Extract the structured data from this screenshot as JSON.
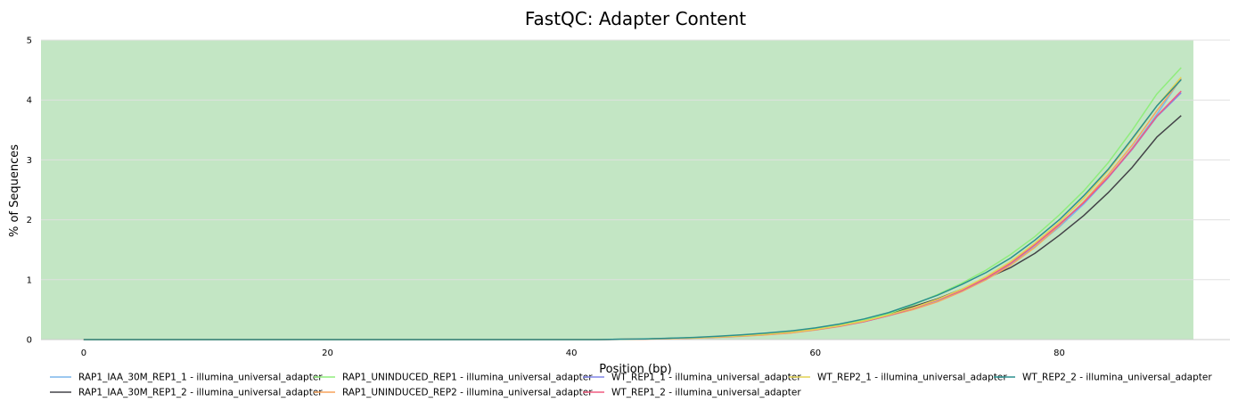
{
  "chart_data": {
    "type": "line",
    "title": "FastQC: Adapter Content",
    "xlabel": "Position (bp)",
    "ylabel": "% of Sequences",
    "xlim": [
      -3.5,
      94
    ],
    "ylim": [
      0,
      5
    ],
    "xticks": [
      0,
      20,
      40,
      60,
      80
    ],
    "yticks": [
      0,
      1,
      2,
      3,
      4,
      5
    ],
    "background_band": {
      "from": 0,
      "to": 5,
      "color": "#c3e6c4"
    },
    "band_x_end": 91,
    "grid": "horizontal",
    "legend_position": "bottom",
    "x": [
      0,
      2,
      4,
      6,
      8,
      10,
      12,
      14,
      16,
      18,
      20,
      22,
      24,
      26,
      28,
      30,
      32,
      34,
      36,
      38,
      40,
      42,
      44,
      46,
      48,
      50,
      52,
      54,
      56,
      58,
      60,
      62,
      64,
      66,
      68,
      70,
      72,
      74,
      76,
      78,
      80,
      82,
      84,
      86,
      88,
      90
    ],
    "series": [
      {
        "name": "RAP1_IAA_30M_REP1_1 - illumina_universal_adapter",
        "color": "#7cb5ec",
        "values": [
          0,
          0,
          0,
          0,
          0,
          0,
          0,
          0,
          0,
          0,
          0,
          0,
          0,
          0,
          0,
          0,
          0,
          0,
          0,
          0,
          0,
          0,
          0.005,
          0.01,
          0.018,
          0.028,
          0.045,
          0.065,
          0.09,
          0.12,
          0.17,
          0.23,
          0.31,
          0.41,
          0.52,
          0.65,
          0.82,
          1.02,
          1.26,
          1.55,
          1.88,
          2.26,
          2.7,
          3.2,
          3.76,
          4.36
        ]
      },
      {
        "name": "RAP1_IAA_30M_REP1_2 - illumina_universal_adapter",
        "color": "#434348",
        "values": [
          0,
          0,
          0,
          0,
          0,
          0,
          0,
          0,
          0,
          0,
          0,
          0,
          0,
          0,
          0,
          0,
          0,
          0,
          0,
          0,
          0,
          0,
          0.005,
          0.01,
          0.02,
          0.03,
          0.05,
          0.07,
          0.1,
          0.13,
          0.18,
          0.25,
          0.33,
          0.43,
          0.55,
          0.68,
          0.84,
          1.02,
          1.2,
          1.44,
          1.74,
          2.07,
          2.45,
          2.88,
          3.38,
          3.74
        ]
      },
      {
        "name": "RAP1_UNINDUCED_REP1 - illumina_universal_adapter",
        "color": "#90ed7d",
        "values": [
          0,
          0,
          0,
          0,
          0,
          0,
          0,
          0,
          0,
          0,
          0,
          0,
          0,
          0,
          0,
          0,
          0,
          0,
          0,
          0,
          0,
          0,
          0.005,
          0.01,
          0.02,
          0.032,
          0.05,
          0.072,
          0.1,
          0.135,
          0.185,
          0.25,
          0.33,
          0.43,
          0.58,
          0.75,
          0.94,
          1.16,
          1.42,
          1.72,
          2.08,
          2.48,
          2.95,
          3.5,
          4.1,
          4.54
        ]
      },
      {
        "name": "RAP1_UNINDUCED_REP2 - illumina_universal_adapter",
        "color": "#f7a35c",
        "values": [
          0,
          0,
          0,
          0,
          0,
          0,
          0,
          0,
          0,
          0,
          0,
          0,
          0,
          0,
          0,
          0,
          0,
          0,
          0,
          0,
          0,
          0,
          0.003,
          0.008,
          0.015,
          0.024,
          0.038,
          0.056,
          0.08,
          0.11,
          0.16,
          0.22,
          0.3,
          0.4,
          0.5,
          0.63,
          0.8,
          1.0,
          1.24,
          1.54,
          1.9,
          2.3,
          2.75,
          3.25,
          3.82,
          4.35
        ]
      },
      {
        "name": "WT_REP1_1 - illumina_universal_adapter",
        "color": "#8085e9",
        "values": [
          0,
          0,
          0,
          0,
          0,
          0,
          0,
          0,
          0,
          0,
          0,
          0,
          0,
          0,
          0,
          0,
          0,
          0,
          0,
          0,
          0,
          0,
          0.004,
          0.009,
          0.017,
          0.027,
          0.043,
          0.062,
          0.088,
          0.12,
          0.165,
          0.225,
          0.3,
          0.4,
          0.52,
          0.66,
          0.82,
          1.02,
          1.27,
          1.58,
          1.92,
          2.28,
          2.7,
          3.18,
          3.72,
          4.12
        ]
      },
      {
        "name": "WT_REP1_2 - illumina_universal_adapter",
        "color": "#f15c80",
        "values": [
          0,
          0,
          0,
          0,
          0,
          0,
          0,
          0,
          0,
          0,
          0,
          0,
          0,
          0,
          0,
          0,
          0,
          0,
          0,
          0,
          0,
          0,
          0.004,
          0.009,
          0.017,
          0.027,
          0.043,
          0.062,
          0.088,
          0.12,
          0.166,
          0.226,
          0.302,
          0.402,
          0.522,
          0.662,
          0.823,
          1.025,
          1.275,
          1.585,
          1.925,
          2.285,
          2.71,
          3.19,
          3.73,
          4.15
        ]
      },
      {
        "name": "WT_REP2_1 - illumina_universal_adapter",
        "color": "#e4d354",
        "values": [
          0,
          0,
          0,
          0,
          0,
          0,
          0,
          0,
          0,
          0,
          0,
          0,
          0,
          0,
          0,
          0,
          0,
          0,
          0,
          0,
          0,
          0,
          0.004,
          0.009,
          0.017,
          0.027,
          0.044,
          0.064,
          0.09,
          0.122,
          0.17,
          0.232,
          0.31,
          0.41,
          0.53,
          0.67,
          0.84,
          1.05,
          1.3,
          1.61,
          1.96,
          2.36,
          2.82,
          3.34,
          3.9,
          4.38
        ]
      },
      {
        "name": "WT_REP2_2 - illumina_universal_adapter",
        "color": "#2b908f",
        "values": [
          0,
          0,
          0,
          0,
          0,
          0,
          0,
          0,
          0,
          0,
          0,
          0,
          0,
          0,
          0,
          0,
          0,
          0,
          0,
          0,
          0,
          0,
          0.005,
          0.012,
          0.022,
          0.035,
          0.055,
          0.08,
          0.11,
          0.145,
          0.195,
          0.26,
          0.345,
          0.45,
          0.59,
          0.74,
          0.92,
          1.12,
          1.36,
          1.66,
          2.0,
          2.4,
          2.84,
          3.36,
          3.9,
          4.34
        ]
      }
    ]
  }
}
